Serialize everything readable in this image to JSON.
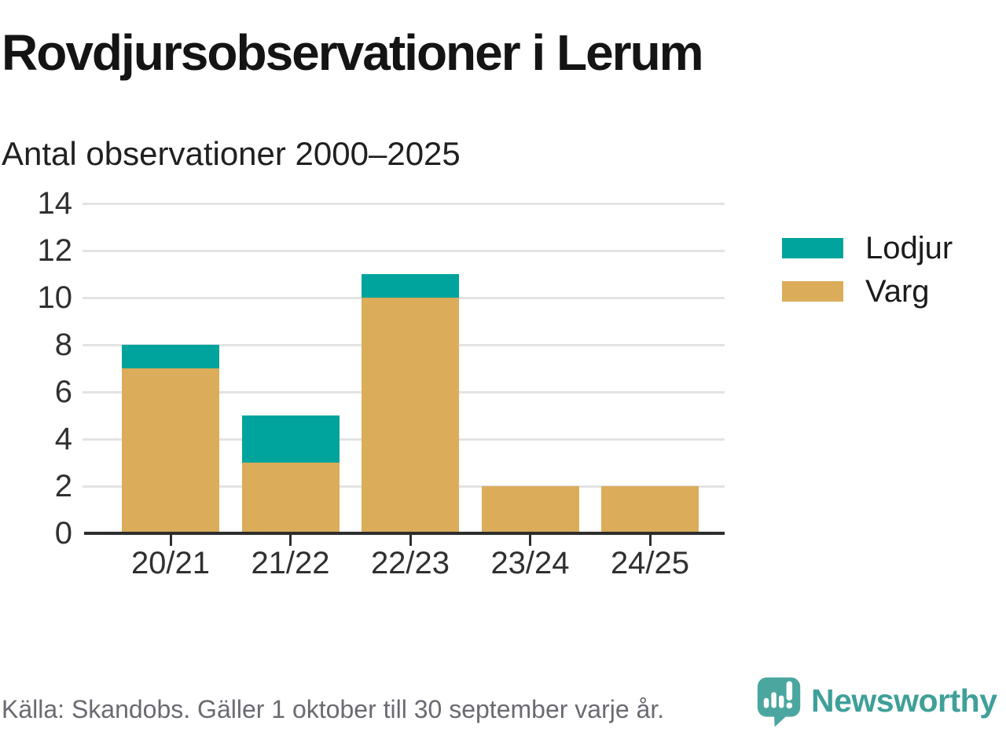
{
  "title": "Rovdjursobservationer i Lerum",
  "subtitle": "Antal observationer 2000–2025",
  "footer": {
    "source": "Källa: Skandobs. Gäller 1 oktober till 30 september varje år."
  },
  "branding": {
    "name": "Newsworthy",
    "logo_icon": "newsworthy-pin-barchart-icon"
  },
  "colors": {
    "lodjur_teal": "#00A49C",
    "varg_gold": "#DBAC5A",
    "gridline": "#E3E3E3",
    "axis": "#2E2E2E",
    "tick_text": "#303030",
    "muted_text": "#6A6A72",
    "brand_teal": "#3FA099",
    "logo_pin_teal": "#4CA6A0"
  },
  "legend": [
    {
      "label": "Lodjur",
      "color": "#00A49C"
    },
    {
      "label": "Varg",
      "color": "#DBAC5A"
    }
  ],
  "chart_data": {
    "type": "bar",
    "stacked": true,
    "title": "Rovdjursobservationer i Lerum",
    "subtitle": "Antal observationer 2000–2025",
    "categories": [
      "20/21",
      "21/22",
      "22/23",
      "23/24",
      "24/25"
    ],
    "series": [
      {
        "name": "Varg",
        "color": "#DBAC5A",
        "values": [
          7,
          3,
          10,
          2,
          2
        ]
      },
      {
        "name": "Lodjur",
        "color": "#00A49C",
        "values": [
          1,
          2,
          1,
          0,
          0
        ]
      }
    ],
    "totals": [
      8,
      5,
      11,
      2,
      2
    ],
    "xlabel": "",
    "ylabel": "",
    "ylim": [
      0,
      14
    ],
    "yticks": [
      0,
      2,
      4,
      6,
      8,
      10,
      12,
      14
    ],
    "grid": true,
    "legend_position": "right",
    "source": "Källa: Skandobs. Gäller 1 oktober till 30 september varje år."
  }
}
